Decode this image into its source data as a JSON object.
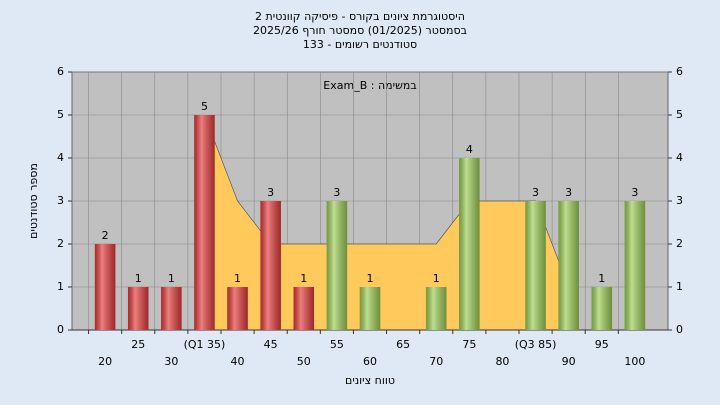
{
  "chart_data": {
    "type": "bar",
    "title": "היסטוגרמת ציונים בקורס - פיסיקה קוונטית 2",
    "subtitle": "בסמסטר  (01/2025)  סמסטר חורף 2025/26",
    "subtitle2": "סטודנטים רשומים - 133",
    "annotation": "במשימה : Exam_B",
    "x_label": "טווח ציונים",
    "y_label": "מספר סטודנטים",
    "categories": [
      "20",
      "25",
      "30",
      "(Q1 35)",
      "40",
      "45",
      "50",
      "55",
      "60",
      "65",
      "70",
      "75",
      "80",
      "(Q3 85)",
      "90",
      "95",
      "100"
    ],
    "values": [
      2,
      1,
      1,
      5,
      1,
      3,
      1,
      3,
      1,
      null,
      1,
      4,
      null,
      3,
      3,
      1,
      3
    ],
    "colors": [
      "#e23a3a",
      "#e23a3a",
      "#e23a3a",
      "#e23a3a",
      "#e23a3a",
      "#e23a3a",
      "#e23a3a",
      "#9ccc55",
      "#9ccc55",
      "#9ccc55",
      "#9ccc55",
      "#9ccc55",
      "#9ccc55",
      "#9ccc55",
      "#9ccc55",
      "#9ccc55",
      "#9ccc55"
    ],
    "area": {
      "color": "#ffc95c",
      "values": [
        null,
        null,
        null,
        5,
        3,
        2,
        2,
        2,
        2,
        2,
        2,
        3,
        3,
        3,
        1,
        null,
        null
      ]
    },
    "ylim": [
      0,
      6
    ],
    "yticks": [
      0,
      1,
      2,
      3,
      4,
      5,
      6
    ],
    "y2lim": [
      0,
      6
    ],
    "y2ticks": [
      0,
      1,
      2,
      3,
      4,
      5,
      6
    ],
    "grid": true
  }
}
